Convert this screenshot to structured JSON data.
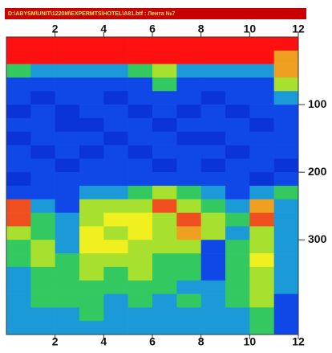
{
  "chart_data": {
    "type": "heatmap",
    "title": "D:\\ABYSM\\UNIT\\1220M\\EXPERMTS\\HOTEL\\A81.btf : Лента №7",
    "xlim": [
      0,
      12
    ],
    "xticks": [
      2,
      4,
      6,
      8,
      10,
      12
    ],
    "ylim": [
      0,
      440
    ],
    "yticks": [
      100,
      200,
      300
    ],
    "zlim": [
      0,
      10
    ],
    "colormap": [
      "#00008b",
      "#0018b8",
      "#0a34d8",
      "#1048e8",
      "#1c9ad8",
      "#34c860",
      "#a8e030",
      "#f0f020",
      "#f0a020",
      "#f05020",
      "#ff1010"
    ],
    "z": [
      [
        10,
        10,
        10,
        10,
        10,
        10,
        10,
        10,
        10,
        10,
        10,
        10
      ],
      [
        10,
        10,
        10,
        10,
        10,
        10,
        10,
        10,
        10,
        10,
        10,
        8
      ],
      [
        5,
        4,
        4,
        4,
        4,
        5,
        6,
        4,
        4,
        4,
        4,
        8
      ],
      [
        3,
        3,
        3,
        3,
        3,
        3,
        5,
        3,
        3,
        3,
        3,
        6
      ],
      [
        3,
        2,
        3,
        3,
        2,
        3,
        3,
        3,
        2,
        3,
        3,
        4
      ],
      [
        2,
        3,
        2,
        3,
        3,
        2,
        3,
        2,
        3,
        2,
        3,
        3
      ],
      [
        3,
        3,
        2,
        2,
        3,
        3,
        2,
        3,
        3,
        3,
        2,
        3
      ],
      [
        2,
        3,
        3,
        3,
        2,
        3,
        3,
        2,
        2,
        3,
        3,
        3
      ],
      [
        3,
        2,
        3,
        2,
        3,
        2,
        3,
        3,
        3,
        2,
        3,
        3
      ],
      [
        3,
        3,
        2,
        3,
        3,
        3,
        2,
        3,
        2,
        3,
        3,
        2
      ],
      [
        2,
        3,
        3,
        3,
        3,
        3,
        3,
        3,
        3,
        3,
        2,
        3
      ],
      [
        3,
        3,
        3,
        4,
        4,
        5,
        6,
        5,
        4,
        3,
        4,
        5
      ],
      [
        9,
        4,
        3,
        6,
        6,
        6,
        9,
        6,
        5,
        4,
        8,
        4
      ],
      [
        9,
        5,
        4,
        6,
        7,
        7,
        6,
        9,
        6,
        5,
        9,
        4
      ],
      [
        6,
        5,
        4,
        7,
        6,
        7,
        6,
        8,
        6,
        4,
        6,
        4
      ],
      [
        5,
        6,
        4,
        7,
        7,
        6,
        6,
        6,
        3,
        5,
        6,
        4
      ],
      [
        5,
        6,
        5,
        6,
        6,
        6,
        5,
        5,
        3,
        5,
        7,
        4
      ],
      [
        4,
        5,
        5,
        6,
        5,
        6,
        5,
        5,
        3,
        5,
        6,
        4
      ],
      [
        4,
        5,
        5,
        5,
        5,
        5,
        5,
        4,
        4,
        5,
        6,
        4
      ],
      [
        4,
        5,
        5,
        5,
        4,
        5,
        4,
        5,
        4,
        5,
        6,
        3
      ],
      [
        4,
        4,
        4,
        5,
        4,
        4,
        4,
        4,
        4,
        4,
        5,
        3
      ],
      [
        4,
        4,
        4,
        4,
        4,
        4,
        4,
        4,
        4,
        4,
        5,
        3
      ]
    ]
  }
}
